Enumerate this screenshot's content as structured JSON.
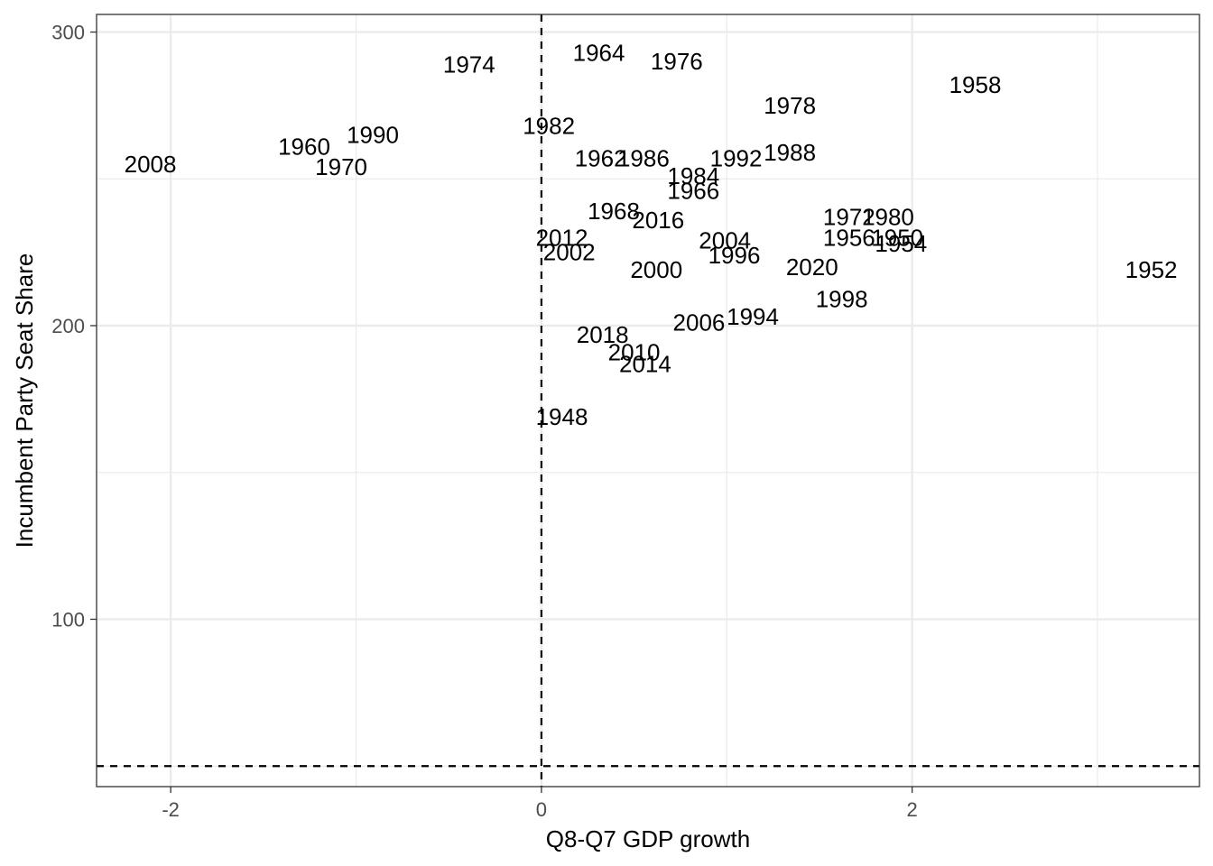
{
  "chart_data": {
    "type": "scatter",
    "xlabel": "Q8-Q7 GDP growth",
    "ylabel": "Incumbent Party Seat Share",
    "xlim": [
      -2.4,
      3.55
    ],
    "ylim": [
      43,
      306
    ],
    "x_ticks": [
      -2,
      0,
      2
    ],
    "x_tick_labels": [
      "-2",
      "0",
      "2"
    ],
    "y_ticks": [
      100,
      200,
      300
    ],
    "y_tick_labels": [
      "100",
      "200",
      "300"
    ],
    "grid": true,
    "reference_lines": {
      "vline_x": 0,
      "hline_y": 50,
      "style": "dashed"
    },
    "points": [
      {
        "label": "1974",
        "x": -0.39,
        "y": 289
      },
      {
        "label": "1964",
        "x": 0.31,
        "y": 293
      },
      {
        "label": "1976",
        "x": 0.73,
        "y": 290
      },
      {
        "label": "1958",
        "x": 2.34,
        "y": 282
      },
      {
        "label": "1978",
        "x": 1.34,
        "y": 275
      },
      {
        "label": "1982",
        "x": 0.04,
        "y": 268
      },
      {
        "label": "1990",
        "x": -0.91,
        "y": 265
      },
      {
        "label": "1960",
        "x": -1.28,
        "y": 261
      },
      {
        "label": "1970",
        "x": -1.08,
        "y": 254
      },
      {
        "label": "2008",
        "x": -2.11,
        "y": 255
      },
      {
        "label": "1962",
        "x": 0.32,
        "y": 257
      },
      {
        "label": "1986",
        "x": 0.55,
        "y": 257
      },
      {
        "label": "1992",
        "x": 1.05,
        "y": 257
      },
      {
        "label": "1988",
        "x": 1.34,
        "y": 259
      },
      {
        "label": "1984",
        "x": 0.82,
        "y": 251
      },
      {
        "label": "1966",
        "x": 0.82,
        "y": 246
      },
      {
        "label": "1968",
        "x": 0.39,
        "y": 239
      },
      {
        "label": "2016",
        "x": 0.63,
        "y": 236
      },
      {
        "label": "1972",
        "x": 1.66,
        "y": 237
      },
      {
        "label": "1980",
        "x": 1.87,
        "y": 237
      },
      {
        "label": "2012",
        "x": 0.11,
        "y": 230
      },
      {
        "label": "2002",
        "x": 0.15,
        "y": 225
      },
      {
        "label": "2004",
        "x": 0.99,
        "y": 229
      },
      {
        "label": "1956",
        "x": 1.66,
        "y": 230
      },
      {
        "label": "1950",
        "x": 1.92,
        "y": 230
      },
      {
        "label": "1954",
        "x": 1.94,
        "y": 228
      },
      {
        "label": "1996",
        "x": 1.04,
        "y": 224
      },
      {
        "label": "2000",
        "x": 0.62,
        "y": 219
      },
      {
        "label": "2020",
        "x": 1.46,
        "y": 220
      },
      {
        "label": "1952",
        "x": 3.29,
        "y": 219
      },
      {
        "label": "1998",
        "x": 1.62,
        "y": 209
      },
      {
        "label": "1994",
        "x": 1.14,
        "y": 203
      },
      {
        "label": "2006",
        "x": 0.85,
        "y": 201
      },
      {
        "label": "2018",
        "x": 0.33,
        "y": 197
      },
      {
        "label": "2010",
        "x": 0.5,
        "y": 191
      },
      {
        "label": "2014",
        "x": 0.56,
        "y": 187
      },
      {
        "label": "1948",
        "x": 0.11,
        "y": 169
      }
    ]
  }
}
